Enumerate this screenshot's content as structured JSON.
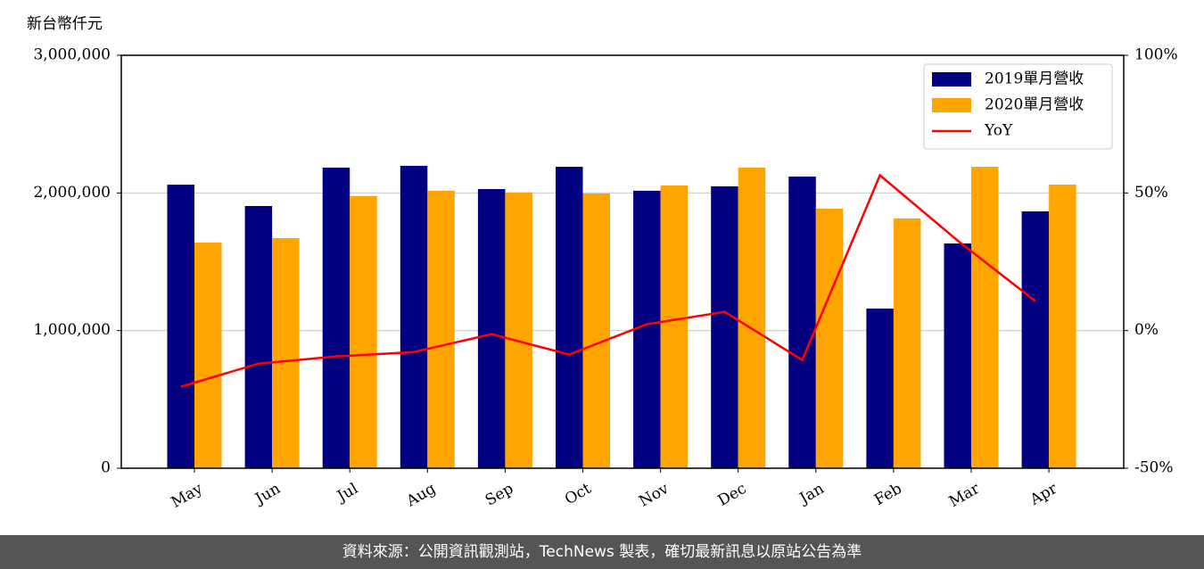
{
  "chart_data": {
    "type": "bar-line",
    "ylabel": "新台幣仟元",
    "categories": [
      "May",
      "Jun",
      "Jul",
      "Aug",
      "Sep",
      "Oct",
      "Nov",
      "Dec",
      "Jan",
      "Feb",
      "Mar",
      "Apr"
    ],
    "series": [
      {
        "name": "2019單月營收",
        "color": "#000080",
        "type": "bar",
        "values": [
          2060000,
          1905000,
          2184000,
          2197000,
          2028000,
          2190000,
          2016000,
          2048000,
          2119000,
          1160000,
          1633000,
          1866000
        ]
      },
      {
        "name": "2020單月營收",
        "color": "#ffa500",
        "type": "bar",
        "values": [
          1640000,
          1672000,
          1977000,
          2016000,
          2003000,
          1996000,
          2054000,
          2184000,
          1886000,
          1815000,
          2190000,
          2061000
        ]
      },
      {
        "name": "YoY",
        "color": "#ff0000",
        "type": "line",
        "axis": "y2",
        "values": [
          -20.4,
          -12,
          -9.4,
          -7.8,
          -1.3,
          -8.7,
          2.3,
          6.8,
          -10.7,
          56.4,
          32.7,
          10.7
        ]
      }
    ],
    "ylim": [
      0,
      3000000
    ],
    "yticks": [
      {
        "value": 0,
        "label": "0"
      },
      {
        "value": 1000000,
        "label": "1,000,000"
      },
      {
        "value": 2000000,
        "label": "2,000,000"
      },
      {
        "value": 3000000,
        "label": "3,000,000"
      }
    ],
    "y2lim": [
      -50,
      100
    ],
    "y2ticks": [
      {
        "value": -50,
        "label": "-50%"
      },
      {
        "value": 0,
        "label": "0%"
      },
      {
        "value": 50,
        "label": "50%"
      },
      {
        "value": 100,
        "label": "100%"
      }
    ],
    "grid": true,
    "legend": "upper right"
  },
  "footer": "資料來源：公開資訊觀測站，TechNews 製表，確切最新訊息以原站公告為準"
}
